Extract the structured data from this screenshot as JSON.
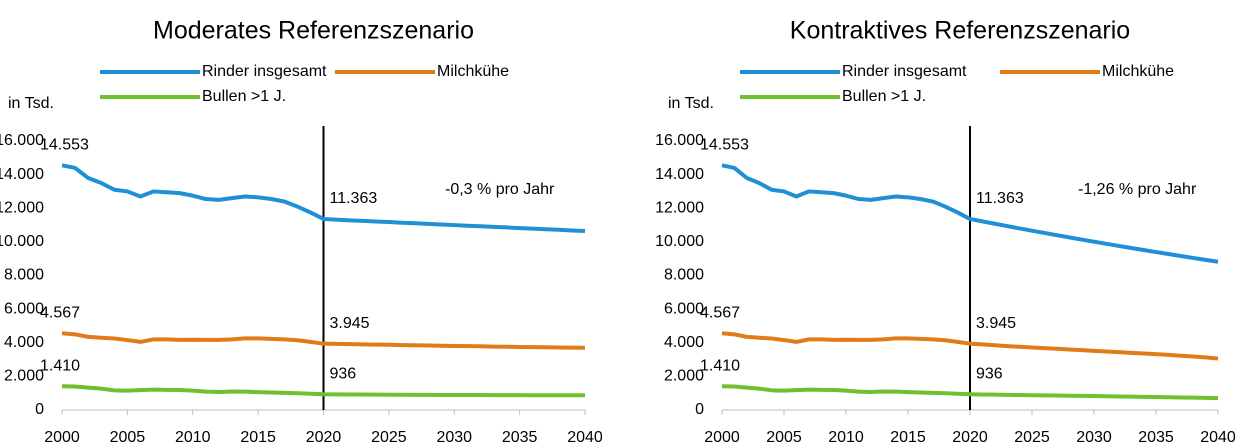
{
  "chart_data": [
    {
      "type": "line",
      "title": "Moderates Referenzszenario",
      "ylabel": "in Tsd.",
      "annotation": "-0,3 % pro Jahr",
      "marker_x": 2020,
      "x": [
        2000,
        2001,
        2002,
        2003,
        2004,
        2005,
        2006,
        2007,
        2008,
        2009,
        2010,
        2011,
        2012,
        2013,
        2014,
        2015,
        2016,
        2017,
        2018,
        2019,
        2020,
        2021,
        2022,
        2023,
        2024,
        2025,
        2026,
        2027,
        2028,
        2029,
        2030,
        2031,
        2032,
        2033,
        2034,
        2035,
        2036,
        2037,
        2038,
        2039,
        2040
      ],
      "xlim": [
        2000,
        2040
      ],
      "xticks": [
        2000,
        2005,
        2010,
        2015,
        2020,
        2025,
        2030,
        2035,
        2040
      ],
      "ylim": [
        0,
        16000
      ],
      "yticks": [
        0,
        {
          "value": 2000,
          "label": "2.000"
        },
        {
          "value": 4000,
          "label": "4.000"
        },
        {
          "value": 6000,
          "label": "6.000"
        },
        {
          "value": 8000,
          "label": "8.000"
        },
        {
          "value": 10000,
          "label": "10.000"
        },
        {
          "value": 12000,
          "label": "12.000"
        },
        {
          "value": 14000,
          "label": "14.000"
        },
        {
          "value": 16000,
          "label": "16.000"
        }
      ],
      "series": [
        {
          "name": "Rinder insgesamt",
          "color": "#1f8fd6",
          "point_labels": [
            {
              "x": 2000,
              "label": "14.553"
            },
            {
              "x": 2020,
              "label": "11.363"
            }
          ],
          "values": [
            14553,
            14400,
            13800,
            13500,
            13100,
            13000,
            12700,
            13000,
            12950,
            12900,
            12750,
            12550,
            12500,
            12600,
            12700,
            12650,
            12550,
            12400,
            12100,
            11750,
            11363,
            11320,
            11280,
            11250,
            11210,
            11180,
            11140,
            11110,
            11070,
            11030,
            11000,
            10960,
            10930,
            10890,
            10860,
            10820,
            10790,
            10750,
            10720,
            10680,
            10650
          ]
        },
        {
          "name": "Milchkühe",
          "color": "#e07b1a",
          "point_labels": [
            {
              "x": 2000,
              "label": "4.567"
            },
            {
              "x": 2020,
              "label": "3.945"
            }
          ],
          "values": [
            4567,
            4500,
            4350,
            4300,
            4250,
            4160,
            4050,
            4200,
            4200,
            4170,
            4180,
            4170,
            4170,
            4200,
            4260,
            4260,
            4230,
            4200,
            4150,
            4050,
            3945,
            3930,
            3920,
            3900,
            3890,
            3880,
            3860,
            3850,
            3840,
            3820,
            3810,
            3800,
            3790,
            3770,
            3760,
            3750,
            3740,
            3730,
            3720,
            3710,
            3700
          ]
        },
        {
          "name": "Bullen >1 J.",
          "color": "#70bf2c",
          "point_labels": [
            {
              "x": 2000,
              "label": "1.410"
            },
            {
              "x": 2020,
              "label": "936"
            }
          ],
          "values": [
            1410,
            1400,
            1330,
            1270,
            1170,
            1150,
            1180,
            1210,
            1200,
            1190,
            1150,
            1090,
            1070,
            1100,
            1090,
            1060,
            1040,
            1020,
            1000,
            970,
            936,
            930,
            925,
            920,
            915,
            910,
            905,
            900,
            900,
            895,
            895,
            890,
            890,
            885,
            885,
            885,
            880,
            880,
            880,
            880,
            880
          ]
        }
      ]
    },
    {
      "type": "line",
      "title": "Kontraktives Referenzszenario",
      "ylabel": "in Tsd.",
      "annotation": "-1,26 % pro Jahr",
      "marker_x": 2020,
      "x": [
        2000,
        2001,
        2002,
        2003,
        2004,
        2005,
        2006,
        2007,
        2008,
        2009,
        2010,
        2011,
        2012,
        2013,
        2014,
        2015,
        2016,
        2017,
        2018,
        2019,
        2020,
        2021,
        2022,
        2023,
        2024,
        2025,
        2026,
        2027,
        2028,
        2029,
        2030,
        2031,
        2032,
        2033,
        2034,
        2035,
        2036,
        2037,
        2038,
        2039,
        2040
      ],
      "xlim": [
        2000,
        2040
      ],
      "xticks": [
        2000,
        2005,
        2010,
        2015,
        2020,
        2025,
        2030,
        2035,
        2040
      ],
      "ylim": [
        0,
        16000
      ],
      "yticks": [
        0,
        {
          "value": 2000,
          "label": "2.000"
        },
        {
          "value": 4000,
          "label": "4.000"
        },
        {
          "value": 6000,
          "label": "6.000"
        },
        {
          "value": 8000,
          "label": "8.000"
        },
        {
          "value": 10000,
          "label": "10.000"
        },
        {
          "value": 12000,
          "label": "12.000"
        },
        {
          "value": 14000,
          "label": "14.000"
        },
        {
          "value": 16000,
          "label": "16.000"
        }
      ],
      "series": [
        {
          "name": "Rinder insgesamt",
          "color": "#1f8fd6",
          "point_labels": [
            {
              "x": 2000,
              "label": "14.553"
            },
            {
              "x": 2020,
              "label": "11.363"
            }
          ],
          "values": [
            14553,
            14400,
            13800,
            13500,
            13100,
            13000,
            12700,
            13000,
            12950,
            12900,
            12750,
            12550,
            12500,
            12600,
            12700,
            12650,
            12550,
            12400,
            12100,
            11750,
            11363,
            11220,
            11078,
            10939,
            10801,
            10665,
            10530,
            10398,
            10267,
            10137,
            10010,
            9884,
            9759,
            9636,
            9515,
            9395,
            9277,
            9160,
            9045,
            8931,
            8818
          ]
        },
        {
          "name": "Milchkühe",
          "color": "#e07b1a",
          "point_labels": [
            {
              "x": 2000,
              "label": "4.567"
            },
            {
              "x": 2020,
              "label": "3.945"
            }
          ],
          "values": [
            4567,
            4500,
            4350,
            4300,
            4250,
            4160,
            4050,
            4200,
            4200,
            4170,
            4180,
            4170,
            4170,
            4200,
            4260,
            4260,
            4230,
            4200,
            4150,
            4050,
            3945,
            3900,
            3850,
            3800,
            3760,
            3720,
            3680,
            3640,
            3600,
            3560,
            3520,
            3480,
            3440,
            3400,
            3360,
            3320,
            3280,
            3230,
            3180,
            3130,
            3060
          ]
        },
        {
          "name": "Bullen >1 J.",
          "color": "#70bf2c",
          "point_labels": [
            {
              "x": 2000,
              "label": "1.410"
            },
            {
              "x": 2020,
              "label": "936"
            }
          ],
          "values": [
            1410,
            1400,
            1330,
            1270,
            1170,
            1150,
            1180,
            1210,
            1200,
            1190,
            1150,
            1090,
            1070,
            1100,
            1090,
            1060,
            1040,
            1020,
            1000,
            970,
            936,
            925,
            912,
            900,
            890,
            880,
            870,
            860,
            850,
            840,
            830,
            818,
            806,
            794,
            782,
            770,
            758,
            746,
            734,
            722,
            710
          ]
        }
      ]
    }
  ]
}
